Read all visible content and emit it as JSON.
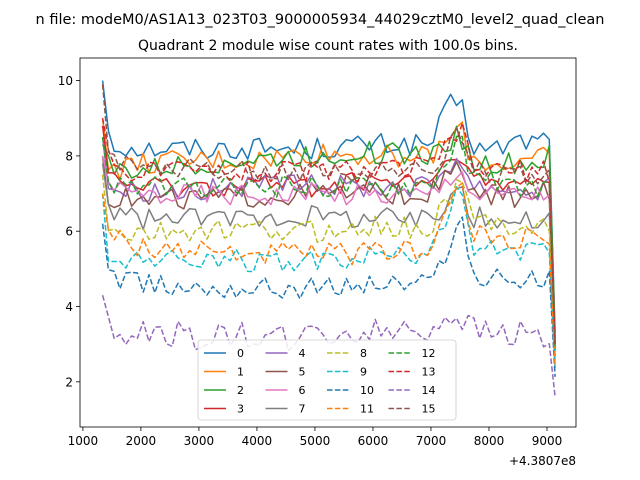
{
  "suptitle": "n file: modeM0/AS1A13_023T03_9000005934_44029cztM0_level2_quad_clean",
  "chart_data": {
    "type": "line",
    "title": "Quadrant 2 module wise count rates with 100.0s bins.",
    "xlabel": "",
    "ylabel": "",
    "offset_label": "+4.3807e8",
    "xlim": [
      950,
      9500
    ],
    "ylim": [
      0.8,
      10.6
    ],
    "xticks": [
      1000,
      2000,
      3000,
      4000,
      5000,
      6000,
      7000,
      8000,
      9000
    ],
    "yticks": [
      2,
      4,
      6,
      8,
      10
    ],
    "grid": false,
    "legend": {
      "placement": "lower-center",
      "columns": 4
    },
    "x_start": 1340,
    "x_step": 100,
    "x_count": 79,
    "series": [
      {
        "name": "0",
        "color": "#1f77b4",
        "dash": "solid",
        "anchors": [
          [
            1340,
            10.0
          ],
          [
            1400,
            9.0
          ],
          [
            1500,
            8.3
          ],
          [
            2000,
            8.2
          ],
          [
            3000,
            8.2
          ],
          [
            4000,
            8.2
          ],
          [
            5000,
            8.2
          ],
          [
            6000,
            8.3
          ],
          [
            7000,
            8.3
          ],
          [
            7300,
            9.3
          ],
          [
            7500,
            9.5
          ],
          [
            7700,
            8.3
          ],
          [
            8000,
            8.1
          ],
          [
            8500,
            8.4
          ],
          [
            8900,
            8.4
          ],
          [
            9050,
            8.6
          ],
          [
            9100,
            5.5
          ],
          [
            9160,
            2.2
          ]
        ]
      },
      {
        "name": "1",
        "color": "#ff7f0e",
        "dash": "solid",
        "anchors": [
          [
            1340,
            9.0
          ],
          [
            1400,
            8.0
          ],
          [
            1500,
            7.6
          ],
          [
            2000,
            7.8
          ],
          [
            3000,
            7.9
          ],
          [
            4000,
            7.9
          ],
          [
            5000,
            8.1
          ],
          [
            6000,
            8.0
          ],
          [
            7000,
            8.0
          ],
          [
            7300,
            8.4
          ],
          [
            7500,
            8.8
          ],
          [
            7700,
            7.9
          ],
          [
            8000,
            7.8
          ],
          [
            8500,
            7.8
          ],
          [
            8900,
            7.9
          ],
          [
            9050,
            8.0
          ],
          [
            9100,
            5.0
          ],
          [
            9160,
            2.2
          ]
        ]
      },
      {
        "name": "2",
        "color": "#2ca02c",
        "dash": "solid",
        "anchors": [
          [
            1340,
            8.3
          ],
          [
            1400,
            7.9
          ],
          [
            1500,
            7.6
          ],
          [
            2000,
            7.6
          ],
          [
            3000,
            7.8
          ],
          [
            4000,
            7.9
          ],
          [
            5000,
            8.0
          ],
          [
            6000,
            8.1
          ],
          [
            7000,
            8.0
          ],
          [
            7300,
            8.4
          ],
          [
            7500,
            8.6
          ],
          [
            7700,
            7.8
          ],
          [
            8000,
            7.8
          ],
          [
            8500,
            7.8
          ],
          [
            8900,
            7.8
          ],
          [
            9050,
            8.0
          ],
          [
            9100,
            5.0
          ],
          [
            9160,
            2.2
          ]
        ]
      },
      {
        "name": "3",
        "color": "#d62728",
        "dash": "solid",
        "anchors": [
          [
            1340,
            8.8
          ],
          [
            1400,
            7.6
          ],
          [
            1500,
            7.3
          ],
          [
            2000,
            7.2
          ],
          [
            3000,
            7.2
          ],
          [
            4000,
            7.3
          ],
          [
            5000,
            7.2
          ],
          [
            6000,
            7.3
          ],
          [
            7000,
            7.3
          ],
          [
            7300,
            7.8
          ],
          [
            7500,
            8.2
          ],
          [
            7700,
            7.3
          ],
          [
            8000,
            7.2
          ],
          [
            8500,
            7.2
          ],
          [
            8900,
            7.3
          ],
          [
            9050,
            7.4
          ],
          [
            9100,
            4.8
          ],
          [
            9160,
            2.1
          ]
        ]
      },
      {
        "name": "4",
        "color": "#9467bd",
        "dash": "solid",
        "anchors": [
          [
            1340,
            8.5
          ],
          [
            1400,
            7.3
          ],
          [
            1500,
            7.1
          ],
          [
            2000,
            7.1
          ],
          [
            3000,
            7.1
          ],
          [
            4000,
            7.2
          ],
          [
            5000,
            7.2
          ],
          [
            6000,
            7.2
          ],
          [
            7000,
            7.2
          ],
          [
            7300,
            7.8
          ],
          [
            7500,
            8.0
          ],
          [
            7700,
            7.2
          ],
          [
            8000,
            7.2
          ],
          [
            8500,
            7.1
          ],
          [
            8900,
            7.1
          ],
          [
            9050,
            7.3
          ],
          [
            9100,
            4.6
          ],
          [
            9160,
            2.0
          ]
        ]
      },
      {
        "name": "5",
        "color": "#8c564b",
        "dash": "solid",
        "anchors": [
          [
            1340,
            8.0
          ],
          [
            1400,
            7.0
          ],
          [
            1500,
            6.9
          ],
          [
            2000,
            6.8
          ],
          [
            3000,
            6.9
          ],
          [
            4000,
            6.9
          ],
          [
            5000,
            7.0
          ],
          [
            6000,
            7.0
          ],
          [
            7000,
            7.0
          ],
          [
            7300,
            7.4
          ],
          [
            7500,
            7.8
          ],
          [
            7700,
            6.9
          ],
          [
            8000,
            6.9
          ],
          [
            8500,
            6.9
          ],
          [
            8900,
            7.0
          ],
          [
            9050,
            7.1
          ],
          [
            9100,
            4.5
          ],
          [
            9160,
            2.0
          ]
        ]
      },
      {
        "name": "6",
        "color": "#e377c2",
        "dash": "solid",
        "anchors": [
          [
            1340,
            8.0
          ],
          [
            1400,
            7.2
          ],
          [
            1500,
            7.0
          ],
          [
            2000,
            7.0
          ],
          [
            3000,
            7.0
          ],
          [
            4000,
            7.0
          ],
          [
            5000,
            7.0
          ],
          [
            6000,
            7.0
          ],
          [
            7000,
            7.0
          ],
          [
            7300,
            7.4
          ],
          [
            7500,
            7.8
          ],
          [
            7700,
            7.0
          ],
          [
            8000,
            7.0
          ],
          [
            8500,
            7.0
          ],
          [
            8900,
            7.0
          ],
          [
            9050,
            7.0
          ],
          [
            9100,
            4.5
          ],
          [
            9160,
            2.0
          ]
        ]
      },
      {
        "name": "7",
        "color": "#7f7f7f",
        "dash": "solid",
        "anchors": [
          [
            1340,
            7.8
          ],
          [
            1400,
            6.8
          ],
          [
            1500,
            6.5
          ],
          [
            2000,
            6.3
          ],
          [
            3000,
            6.3
          ],
          [
            4000,
            6.4
          ],
          [
            5000,
            6.4
          ],
          [
            6000,
            6.4
          ],
          [
            7000,
            6.3
          ],
          [
            7300,
            6.8
          ],
          [
            7500,
            7.4
          ],
          [
            7700,
            6.4
          ],
          [
            8000,
            6.3
          ],
          [
            8500,
            6.3
          ],
          [
            8900,
            6.3
          ],
          [
            9050,
            6.3
          ],
          [
            9100,
            4.2
          ],
          [
            9160,
            1.9
          ]
        ]
      },
      {
        "name": "8",
        "color": "#bcbd22",
        "dash": "dashed",
        "anchors": [
          [
            1340,
            7.5
          ],
          [
            1400,
            6.3
          ],
          [
            1500,
            5.9
          ],
          [
            2000,
            5.9
          ],
          [
            3000,
            6.0
          ],
          [
            4000,
            6.0
          ],
          [
            5000,
            6.0
          ],
          [
            6000,
            6.1
          ],
          [
            7000,
            6.1
          ],
          [
            7300,
            6.8
          ],
          [
            7500,
            7.5
          ],
          [
            7700,
            6.3
          ],
          [
            8000,
            6.2
          ],
          [
            8500,
            6.2
          ],
          [
            8900,
            6.2
          ],
          [
            9050,
            6.2
          ],
          [
            9100,
            4.0
          ],
          [
            9160,
            1.8
          ]
        ]
      },
      {
        "name": "9",
        "color": "#17becf",
        "dash": "dashed",
        "anchors": [
          [
            1340,
            7.0
          ],
          [
            1400,
            5.6
          ],
          [
            1500,
            5.3
          ],
          [
            2000,
            5.2
          ],
          [
            3000,
            5.3
          ],
          [
            4000,
            5.2
          ],
          [
            5000,
            5.2
          ],
          [
            6000,
            5.3
          ],
          [
            7000,
            5.4
          ],
          [
            7300,
            6.3
          ],
          [
            7500,
            7.2
          ],
          [
            7700,
            5.6
          ],
          [
            8000,
            5.5
          ],
          [
            8500,
            5.4
          ],
          [
            8900,
            5.4
          ],
          [
            9050,
            5.4
          ],
          [
            9100,
            3.6
          ],
          [
            9160,
            1.7
          ]
        ]
      },
      {
        "name": "10",
        "color": "#1f77b4",
        "dash": "dashed",
        "anchors": [
          [
            1340,
            6.2
          ],
          [
            1400,
            4.9
          ],
          [
            1500,
            4.7
          ],
          [
            2000,
            4.6
          ],
          [
            3000,
            4.5
          ],
          [
            4000,
            4.5
          ],
          [
            5000,
            4.5
          ],
          [
            6000,
            4.6
          ],
          [
            7000,
            4.6
          ],
          [
            7300,
            5.6
          ],
          [
            7500,
            6.6
          ],
          [
            7700,
            4.8
          ],
          [
            8000,
            4.7
          ],
          [
            8500,
            4.7
          ],
          [
            8900,
            4.7
          ],
          [
            9050,
            4.7
          ],
          [
            9100,
            3.2
          ],
          [
            9160,
            1.6
          ]
        ]
      },
      {
        "name": "11",
        "color": "#ff7f0e",
        "dash": "dashed",
        "anchors": [
          [
            1340,
            7.0
          ],
          [
            1400,
            6.2
          ],
          [
            1500,
            5.8
          ],
          [
            2000,
            5.6
          ],
          [
            3000,
            5.5
          ],
          [
            4000,
            5.4
          ],
          [
            5000,
            5.4
          ],
          [
            6000,
            5.4
          ],
          [
            7000,
            5.6
          ],
          [
            7300,
            6.6
          ],
          [
            7500,
            7.4
          ],
          [
            7700,
            5.9
          ],
          [
            8000,
            5.8
          ],
          [
            8500,
            5.8
          ],
          [
            8900,
            5.8
          ],
          [
            9050,
            5.8
          ],
          [
            9100,
            3.8
          ],
          [
            9160,
            1.7
          ]
        ]
      },
      {
        "name": "12",
        "color": "#2ca02c",
        "dash": "dashed",
        "anchors": [
          [
            1340,
            8.5
          ],
          [
            1400,
            7.6
          ],
          [
            1500,
            7.3
          ],
          [
            2000,
            7.2
          ],
          [
            3000,
            7.1
          ],
          [
            4000,
            7.2
          ],
          [
            5000,
            7.2
          ],
          [
            6000,
            7.2
          ],
          [
            7000,
            7.3
          ],
          [
            7300,
            8.0
          ],
          [
            7500,
            8.5
          ],
          [
            7700,
            7.4
          ],
          [
            8000,
            7.3
          ],
          [
            8500,
            7.2
          ],
          [
            8900,
            7.2
          ],
          [
            9050,
            7.2
          ],
          [
            9100,
            4.6
          ],
          [
            9160,
            2.0
          ]
        ]
      },
      {
        "name": "13",
        "color": "#d62728",
        "dash": "dashed",
        "anchors": [
          [
            1340,
            9.0
          ],
          [
            1400,
            8.0
          ],
          [
            1500,
            7.7
          ],
          [
            2000,
            7.6
          ],
          [
            3000,
            7.6
          ],
          [
            4000,
            7.6
          ],
          [
            5000,
            7.6
          ],
          [
            6000,
            7.6
          ],
          [
            7000,
            7.7
          ],
          [
            7300,
            8.3
          ],
          [
            7500,
            8.8
          ],
          [
            7700,
            7.7
          ],
          [
            8000,
            7.6
          ],
          [
            8500,
            7.6
          ],
          [
            8900,
            7.6
          ],
          [
            9050,
            7.6
          ],
          [
            9100,
            4.8
          ],
          [
            9160,
            2.1
          ]
        ]
      },
      {
        "name": "14",
        "color": "#9467bd",
        "dash": "dashed",
        "anchors": [
          [
            1340,
            4.3
          ],
          [
            1400,
            3.7
          ],
          [
            1500,
            3.4
          ],
          [
            2000,
            3.3
          ],
          [
            3000,
            3.2
          ],
          [
            4000,
            3.2
          ],
          [
            5000,
            3.2
          ],
          [
            6000,
            3.3
          ],
          [
            7000,
            3.4
          ],
          [
            7300,
            3.8
          ],
          [
            7500,
            3.8
          ],
          [
            7700,
            3.4
          ],
          [
            8000,
            3.3
          ],
          [
            8500,
            3.3
          ],
          [
            8900,
            3.2
          ],
          [
            9050,
            3.1
          ],
          [
            9100,
            2.4
          ],
          [
            9160,
            1.2
          ]
        ]
      },
      {
        "name": "15",
        "color": "#8c564b",
        "dash": "dashed",
        "anchors": [
          [
            1340,
            9.9
          ],
          [
            1400,
            8.3
          ],
          [
            1500,
            7.9
          ],
          [
            2000,
            7.7
          ],
          [
            3000,
            7.7
          ],
          [
            4000,
            7.6
          ],
          [
            5000,
            7.6
          ],
          [
            6000,
            7.6
          ],
          [
            7000,
            7.6
          ],
          [
            7300,
            8.3
          ],
          [
            7500,
            8.8
          ],
          [
            7700,
            7.6
          ],
          [
            8000,
            7.5
          ],
          [
            8500,
            7.5
          ],
          [
            8900,
            7.5
          ],
          [
            9050,
            7.5
          ],
          [
            9100,
            4.8
          ],
          [
            9160,
            2.1
          ]
        ]
      }
    ]
  }
}
